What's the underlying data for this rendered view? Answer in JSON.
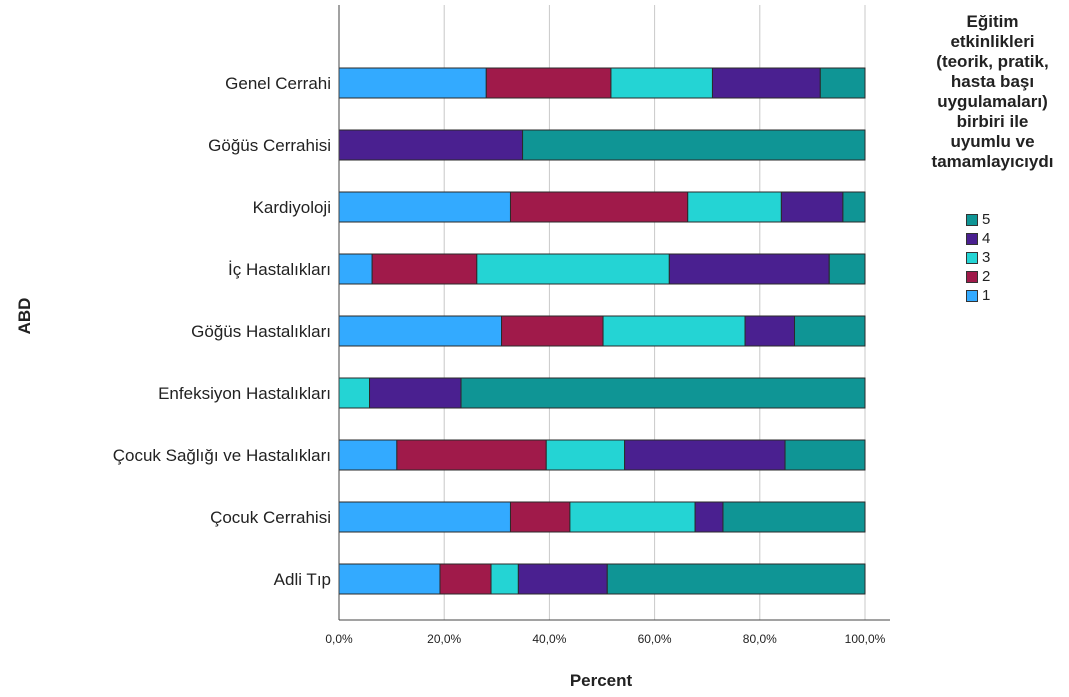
{
  "chart_data": {
    "type": "bar",
    "orientation": "horizontal",
    "stacked": true,
    "percent": true,
    "xlabel": "Percent",
    "ylabel": "ABD",
    "xlim": [
      0,
      100
    ],
    "x_ticks": [
      "0,0%",
      "20,0%",
      "40,0%",
      "60,0%",
      "80,0%",
      "100,0%"
    ],
    "grid": "vertical",
    "legend_position": "right",
    "legend_title": [
      "Eğitim",
      "etkinlikleri",
      "(teorik, pratik,",
      "hasta başı",
      "uygulamaları)",
      "birbiri ile",
      "uyumlu ve",
      "tamamlayıcıydı"
    ],
    "categories": [
      "Genel Cerrahi",
      "Göğüs Cerrahisi",
      "Kardiyoloji",
      "İç Hastalıkları",
      "Göğüs Hastalıkları",
      "Enfeksiyon Hastalıkları",
      "Çocuk Sağlığı ve Hastalıkları",
      "Çocuk Cerrahisi",
      "Adli Tıp"
    ],
    "series": [
      {
        "name": "1",
        "color": "#33aaff",
        "values": [
          28.0,
          0.0,
          32.6,
          6.3,
          30.9,
          0.0,
          11.0,
          32.6,
          19.2
        ]
      },
      {
        "name": "2",
        "color": "#a01a4a",
        "values": [
          23.7,
          0.0,
          33.7,
          19.9,
          19.3,
          0.0,
          28.4,
          11.3,
          9.7
        ]
      },
      {
        "name": "3",
        "color": "#24d4d4",
        "values": [
          19.3,
          0.0,
          17.8,
          36.6,
          27.0,
          5.8,
          14.9,
          23.8,
          5.2
        ]
      },
      {
        "name": "4",
        "color": "#4a2090",
        "values": [
          20.5,
          34.9,
          11.7,
          30.4,
          9.4,
          17.4,
          30.5,
          5.3,
          16.9
        ]
      },
      {
        "name": "5",
        "color": "#0f9595",
        "values": [
          8.5,
          65.1,
          4.2,
          6.8,
          13.4,
          76.8,
          15.2,
          27.0,
          49.0
        ]
      }
    ],
    "legend_order": [
      "5",
      "4",
      "3",
      "2",
      "1"
    ]
  }
}
